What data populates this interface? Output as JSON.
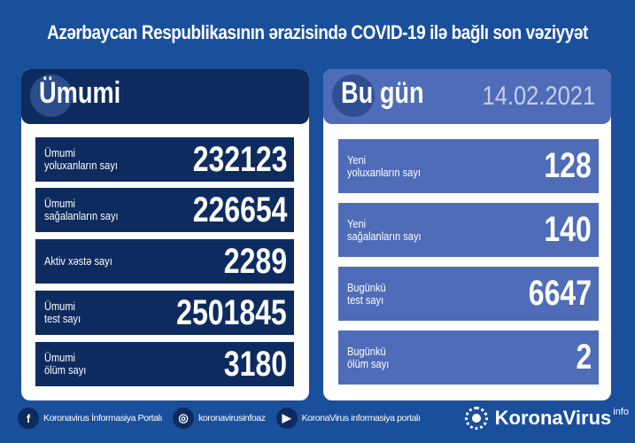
{
  "title": "Azərbaycan Respublikasının ərazisində COVID-19 ilə bağlı son vəziyyət",
  "total": {
    "heading": "Ümumi",
    "rows": [
      {
        "label": "Ümumi\nyoluxanların sayı",
        "value": "232123"
      },
      {
        "label": "Ümumi\nsağalanların sayı",
        "value": "226654"
      },
      {
        "label": "Aktiv xəstə sayı",
        "value": "2289"
      },
      {
        "label": "Ümumi\ntest sayı",
        "value": "2501845"
      },
      {
        "label": "Ümumi\nölüm sayı",
        "value": "3180"
      }
    ]
  },
  "today": {
    "heading": "Bu gün",
    "date": "14.02.2021",
    "rows": [
      {
        "label": "Yeni\nyoluxanların sayı",
        "value": "128"
      },
      {
        "label": "Yeni\nsağalanların sayı",
        "value": "140"
      },
      {
        "label": "Bugünkü\ntest sayı",
        "value": "6647"
      },
      {
        "label": "Bugünkü\nölüm sayı",
        "value": "2"
      }
    ]
  },
  "footer": {
    "facebook": "Koronavirus İnformasiya Portalı",
    "instagram": "koronavirusinfoaz",
    "youtube": "KoronaVirus informasiya portalı",
    "brand": "KoronaVirus",
    "brand_sup": "info"
  },
  "colors": {
    "background": "#1a4f9c",
    "navy": "#0d2b5e",
    "accent": "#4e6cb8"
  }
}
